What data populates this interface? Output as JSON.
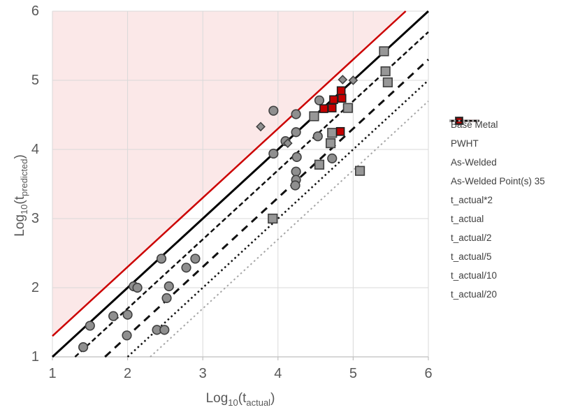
{
  "chart_data": {
    "type": "scatter",
    "title": "",
    "xlabel": "Log10(t_actual)",
    "ylabel": "Log10(t_predicted)",
    "xlim": [
      1,
      6
    ],
    "ylim": [
      1,
      6
    ],
    "x_ticks": [
      1,
      2,
      3,
      4,
      5,
      6
    ],
    "y_ticks": [
      1,
      2,
      3,
      4,
      5,
      6
    ],
    "grid": true,
    "legend_position": "right",
    "series": [
      {
        "name": "Base Metal",
        "marker": "circle",
        "fill": "#8F8F8F",
        "stroke": "#3F3F3F",
        "points": [
          [
            1.41,
            1.14
          ],
          [
            1.5,
            1.45
          ],
          [
            1.81,
            1.59
          ],
          [
            1.99,
            1.31
          ],
          [
            2.0,
            1.61
          ],
          [
            2.39,
            1.39
          ],
          [
            2.49,
            1.39
          ],
          [
            2.08,
            2.02
          ],
          [
            2.13,
            2.0
          ],
          [
            2.45,
            2.42
          ],
          [
            2.52,
            1.85
          ],
          [
            2.55,
            2.02
          ],
          [
            2.78,
            2.29
          ],
          [
            2.9,
            2.42
          ],
          [
            3.94,
            3.94
          ],
          [
            4.1,
            4.12
          ],
          [
            4.24,
            4.25
          ],
          [
            4.25,
            3.89
          ],
          [
            4.24,
            3.68
          ],
          [
            4.24,
            3.56
          ],
          [
            4.23,
            3.48
          ],
          [
            4.53,
            4.19
          ],
          [
            4.72,
            3.87
          ],
          [
            4.55,
            4.71
          ],
          [
            3.94,
            4.56
          ],
          [
            4.24,
            4.51
          ]
        ]
      },
      {
        "name": "PWHT",
        "marker": "diamond",
        "fill": "#8F8F8F",
        "stroke": "#3F3F3F",
        "points": [
          [
            3.77,
            4.33
          ],
          [
            4.13,
            4.09
          ],
          [
            4.86,
            5.01
          ],
          [
            5.0,
            5.0
          ]
        ]
      },
      {
        "name": "As-Welded",
        "marker": "square",
        "fill": "#979797",
        "stroke": "#3F3F3F",
        "points": [
          [
            3.93,
            3.0
          ],
          [
            4.48,
            4.48
          ],
          [
            4.55,
            3.78
          ],
          [
            4.7,
            4.09
          ],
          [
            4.72,
            4.24
          ],
          [
            4.93,
            4.6
          ],
          [
            5.09,
            3.69
          ],
          [
            5.41,
            5.42
          ],
          [
            5.43,
            5.13
          ],
          [
            5.46,
            4.97
          ]
        ]
      },
      {
        "name": "As-Welded Point(s) 35",
        "marker": "square-small",
        "fill": "#C40000",
        "stroke": "#1F1F1F",
        "points": [
          [
            4.61,
            4.59
          ],
          [
            4.72,
            4.6
          ],
          [
            4.74,
            4.72
          ],
          [
            4.85,
            4.74
          ],
          [
            4.84,
            4.85
          ],
          [
            4.83,
            4.26
          ]
        ]
      }
    ],
    "reference_lines": [
      {
        "name": "t_actual*2",
        "equation": "y = x + log10(2)",
        "offset": 0.30103,
        "color": "#CC0000",
        "style": "solid",
        "width": 2.5
      },
      {
        "name": "t_actual",
        "equation": "y = x",
        "offset": 0,
        "color": "#000000",
        "style": "solid",
        "width": 3
      },
      {
        "name": "t_actual/2",
        "equation": "y = x - log10(2)",
        "offset": -0.30103,
        "color": "#111111",
        "style": "dash",
        "width": 2.5
      },
      {
        "name": "t_actual/5",
        "equation": "y = x - log10(5)",
        "offset": -0.69897,
        "color": "#111111",
        "style": "longdash",
        "width": 3
      },
      {
        "name": "t_actual/10",
        "equation": "y = x - 1",
        "offset": -1.0,
        "color": "#111111",
        "style": "dot",
        "width": 2.5
      },
      {
        "name": "t_actual/20",
        "equation": "y = x - log10(20)",
        "offset": -1.30103,
        "color": "#A6A6A6",
        "style": "dot",
        "width": 2
      }
    ],
    "shaded_region": {
      "description": "area above t_actual*2 line (over-prediction zone)",
      "fill": "#FBE8E8"
    }
  },
  "axes": {
    "x": {
      "title": {
        "pre": "Log",
        "presub": "10",
        "mid": "(t",
        "sub": "actual",
        "post": ")"
      },
      "tick_labels": [
        "1",
        "2",
        "3",
        "4",
        "5",
        "6"
      ]
    },
    "y": {
      "title": {
        "pre": "Log",
        "presub": "10",
        "mid": "(t",
        "sub": "predicted",
        "post": ")"
      },
      "tick_labels": [
        "1",
        "2",
        "3",
        "4",
        "5",
        "6"
      ]
    }
  },
  "legend": {
    "items": [
      {
        "label": "Base Metal",
        "type": "marker",
        "marker": "circle",
        "fill": "#8F8F8F",
        "stroke": "#3F3F3F"
      },
      {
        "label": "PWHT",
        "type": "marker",
        "marker": "diamond",
        "fill": "#8F8F8F",
        "stroke": "#3F3F3F"
      },
      {
        "label": "As-Welded",
        "type": "marker",
        "marker": "square",
        "fill": "#979797",
        "stroke": "#3F3F3F"
      },
      {
        "label": "As-Welded Point(s) 35",
        "type": "marker",
        "marker": "square-small",
        "fill": "#C40000",
        "stroke": "#1F1F1F"
      },
      {
        "label": "t_actual*2",
        "type": "line",
        "color": "#CC0000",
        "style": "solid"
      },
      {
        "label": "t_actual",
        "type": "line",
        "color": "#000000",
        "style": "solid"
      },
      {
        "label": "t_actual/2",
        "type": "line",
        "color": "#111111",
        "style": "dash"
      },
      {
        "label": "t_actual/5",
        "type": "line",
        "color": "#111111",
        "style": "longdash"
      },
      {
        "label": "t_actual/10",
        "type": "line",
        "color": "#111111",
        "style": "dot"
      },
      {
        "label": "t_actual/20",
        "type": "line",
        "color": "#A6A6A6",
        "style": "dot"
      }
    ]
  },
  "colors": {
    "grid": "#D9D9D9",
    "axis": "#BFBFBF",
    "tick_text": "#595959",
    "legend_text": "#404040",
    "background": "#FFFFFF"
  }
}
